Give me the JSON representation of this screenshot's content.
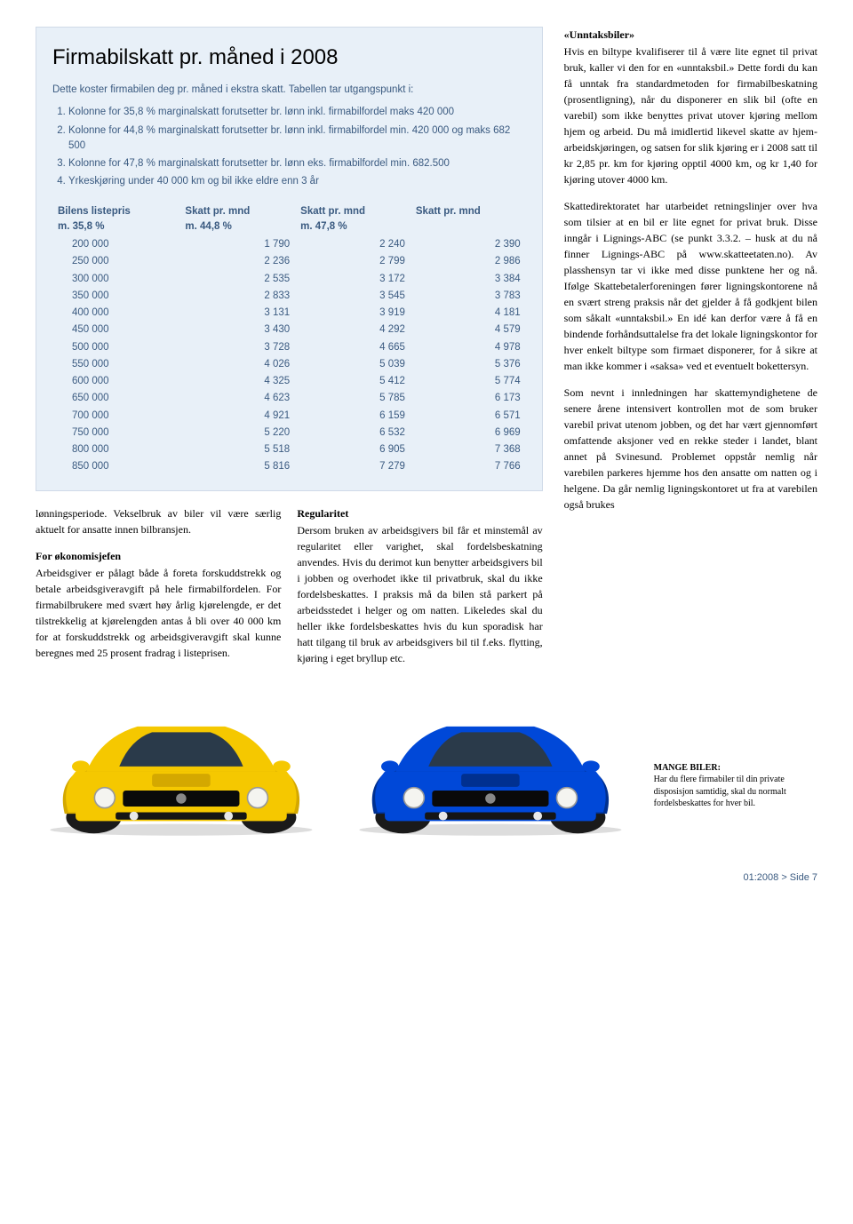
{
  "infobox": {
    "title": "Firmabilskatt pr. måned i 2008",
    "intro": "Dette koster firmabilen deg pr. måned i ekstra skatt. Tabellen tar utgangspunkt i:",
    "rules": [
      "Kolonne for 35,8 % marginalskatt forutsetter br. lønn inkl. firmabilfordel maks 420 000",
      "Kolonne for 44,8 % marginalskatt forutsetter br. lønn inkl. firmabilfordel min. 420 000 og maks 682 500",
      "Kolonne for 47,8 % marginalskatt forutsetter br. lønn eks. firmabilfordel min. 682.500",
      "Yrkeskjøring under 40 000 km og bil ikke eldre enn 3 år"
    ],
    "table": {
      "headers": [
        {
          "l1": "Bilens listepris",
          "l2": "m. 35,8 %"
        },
        {
          "l1": "Skatt pr. mnd",
          "l2": "m. 44,8 %"
        },
        {
          "l1": "Skatt pr. mnd",
          "l2": "m. 47,8 %"
        },
        {
          "l1": "Skatt pr. mnd",
          "l2": ""
        }
      ],
      "rows": [
        [
          "200 000",
          "1 790",
          "2 240",
          "2 390"
        ],
        [
          "250 000",
          "2 236",
          "2 799",
          "2 986"
        ],
        [
          "300 000",
          "2 535",
          "3 172",
          "3 384"
        ],
        [
          "350 000",
          "2 833",
          "3 545",
          "3 783"
        ],
        [
          "400 000",
          "3 131",
          "3 919",
          "4 181"
        ],
        [
          "450 000",
          "3 430",
          "4 292",
          "4 579"
        ],
        [
          "500 000",
          "3 728",
          "4 665",
          "4 978"
        ],
        [
          "550 000",
          "4 026",
          "5 039",
          "5 376"
        ],
        [
          "600 000",
          "4 325",
          "5 412",
          "5 774"
        ],
        [
          "650 000",
          "4 623",
          "5 785",
          "6 173"
        ],
        [
          "700 000",
          "4 921",
          "6 159",
          "6 571"
        ],
        [
          "750 000",
          "5 220",
          "6 532",
          "6 969"
        ],
        [
          "800 000",
          "5 518",
          "6 905",
          "7 368"
        ],
        [
          "850 000",
          "5 816",
          "7 279",
          "7 766"
        ]
      ]
    }
  },
  "body": {
    "col1": {
      "p1": "lønningsperiode. Vekselbruk av biler vil være særlig aktuelt for ansatte innen bilbransjen.",
      "h1": "For økonomisjefen",
      "p2": "Arbeidsgiver er pålagt både å foreta forskuddstrekk og betale arbeidsgiveravgift på hele firmabilfordelen. For firmabilbrukere med svært høy årlig kjørelengde, er det tilstrekkelig at kjørelengden antas å bli over 40 000 km for at forskuddstrekk og arbeidsgiveravgift skal kunne beregnes med 25 prosent fradrag i listeprisen."
    },
    "col2": {
      "h1": "Regularitet",
      "p1": "Dersom bruken av arbeidsgivers bil får et minstemål av regularitet eller varighet, skal fordelsbeskatning anvendes. Hvis du derimot kun benytter arbeidsgivers bil i jobben og overhodet ikke til privatbruk, skal du ikke fordelsbeskattes. I praksis må da bilen stå parkert på arbeidsstedet i helger og om natten. Likeledes skal du heller ikke fordelsbeskattes hvis du kun sporadisk har hatt tilgang til bruk av arbeidsgivers bil til f.eks. flytting, kjøring i eget bryllup etc."
    }
  },
  "right": {
    "h1": "«Unntaksbiler»",
    "p1": "Hvis en biltype kvalifiserer til å være lite egnet til privat bruk, kaller vi den for en «unntaksbil.» Dette fordi du kan få unntak fra standardmetoden for firmabilbeskatning (prosentligning), når du disponerer en slik bil (ofte en varebil) som ikke benyttes privat utover kjøring mellom hjem og arbeid. Du må imidlertid likevel skatte av hjem-arbeidskjøringen, og satsen for slik kjøring er i 2008 satt til kr 2,85 pr. km for kjøring opptil 4000 km, og kr 1,40 for kjøring utover 4000 km.",
    "p2": "Skattedirektoratet har utarbeidet retningslinjer over hva som tilsier at en bil er lite egnet for privat bruk. Disse inngår i Lignings-ABC (se punkt 3.3.2. – husk at du nå finner Lignings-ABC på www.skatteetaten.no). Av plasshensyn tar vi ikke med disse punktene her og nå. Ifølge Skattebetalerforeningen fører ligningskontorene nå en svært streng praksis når det gjelder å få godkjent bilen som såkalt «unntaksbil.» En idé kan derfor være å få en bindende forhåndsuttalelse fra det lokale ligningskontor for hver enkelt biltype som firmaet disponerer, for å sikre at man ikke kommer i «saksa» ved et eventuelt bokettersyn.",
    "p3": "Som nevnt i innledningen har skattemyndighetene de senere årene intensivert kontrollen mot de som bruker varebil privat utenom jobben, og det har vært gjennomført omfattende aksjoner ved en rekke steder i landet, blant annet på Svinesund. Problemet oppstår nemlig når varebilen parkeres hjemme hos den ansatte om natten og i helgene. Da går nemlig ligningskontoret ut fra at varebilen også brukes"
  },
  "caption": {
    "title": "MANGE BILER:",
    "text": "Har du flere firmabiler til din private disposisjon samtidig, skal du normalt fordelsbeskattes for hver bil."
  },
  "footer": "01:2008 > Side 7",
  "colors": {
    "infobox_bg": "#e8f0f8",
    "infobox_text": "#3a5a80",
    "car1_body": "#f5c800",
    "car1_dark": "#d4a800",
    "car2_body": "#0048d8",
    "car2_dark": "#003090",
    "tire": "#1a1a1a",
    "windshield": "#2a3a4a"
  }
}
